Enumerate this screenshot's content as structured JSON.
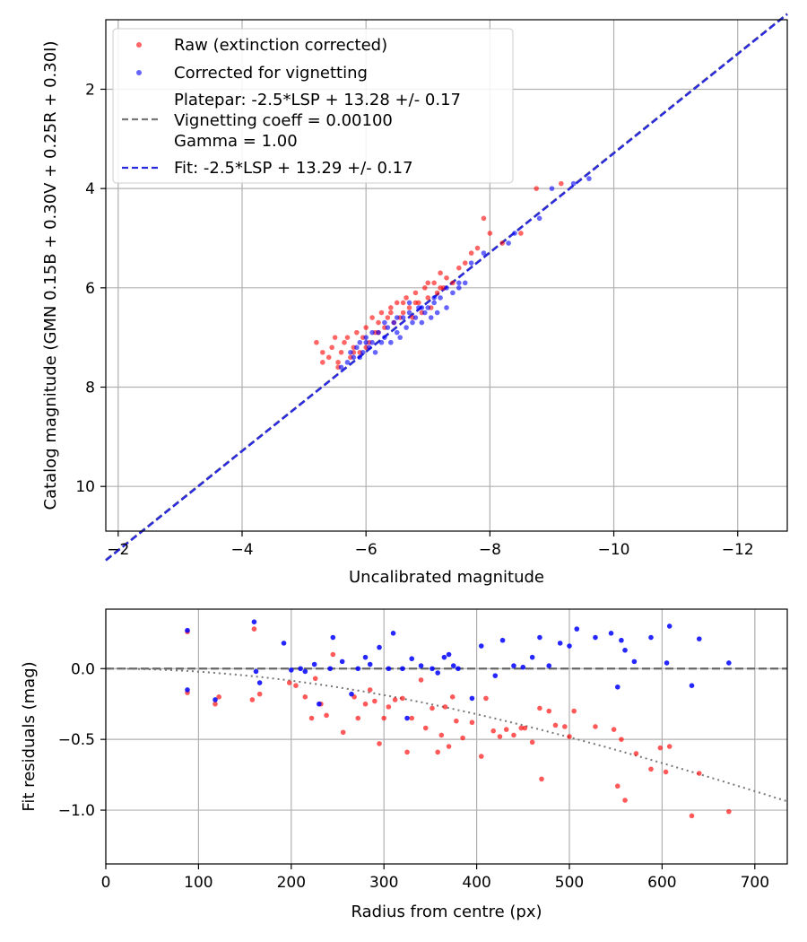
{
  "chart_data": [
    {
      "type": "scatter",
      "xlabel": "Uncalibrated magnitude",
      "ylabel": "Catalog magnitude (GMN 0.15B + 0.30V + 0.25R + 0.30I)",
      "xlim": [
        -1.8,
        -12.8
      ],
      "ylim": [
        0.6,
        10.9
      ],
      "x_inverted": true,
      "y_inverted": true,
      "xticks": [
        -2,
        -4,
        -6,
        -8,
        -10,
        -12
      ],
      "xtick_labels": [
        "−2",
        "−4",
        "−6",
        "−8",
        "−10",
        "−12"
      ],
      "yticks": [
        2,
        4,
        6,
        8,
        10
      ],
      "ytick_labels": [
        "2",
        "4",
        "6",
        "8",
        "10"
      ],
      "grid": true,
      "legend_position": "top-left",
      "legend": [
        {
          "label": "Raw (extinction corrected)",
          "kind": "marker",
          "color": "#ff0000"
        },
        {
          "label": "Corrected for vignetting",
          "kind": "marker",
          "color": "#0000ff"
        },
        {
          "label": "Platepar: -2.5*LSP + 13.28 +/- 0.17",
          "kind": "line",
          "color": "#777777"
        },
        {
          "label": "Vignetting coeff = 0.00100",
          "kind": "text",
          "color": "#777777"
        },
        {
          "label": "Gamma = 1.00",
          "kind": "text",
          "color": "#777777"
        },
        {
          "label": "Fit: -2.5*LSP + 13.29 +/- 0.17",
          "kind": "line",
          "color": "#2929e0"
        }
      ],
      "series": [
        {
          "name": "Raw (extinction corrected)",
          "color": "#ff0000",
          "x": [
            -5.2,
            -5.3,
            -5.4,
            -5.45,
            -5.5,
            -5.55,
            -5.6,
            -5.65,
            -5.7,
            -5.75,
            -5.8,
            -5.85,
            -5.9,
            -5.95,
            -6.0,
            -6.05,
            -6.1,
            -6.15,
            -6.2,
            -6.25,
            -6.3,
            -6.35,
            -6.4,
            -6.45,
            -6.5,
            -6.55,
            -6.6,
            -6.65,
            -6.7,
            -6.75,
            -6.8,
            -6.85,
            -6.9,
            -6.95,
            -7.0,
            -7.05,
            -7.1,
            -7.15,
            -7.2,
            -7.25,
            -7.3,
            -7.4,
            -7.5,
            -7.6,
            -7.7,
            -7.8,
            -7.9,
            -8.0,
            -8.2,
            -8.5,
            -8.75,
            -9.15,
            -5.3,
            -5.55,
            -5.8,
            -6.0,
            -6.2,
            -6.4,
            -6.6,
            -6.8,
            -7.0,
            -7.2
          ],
          "y": [
            7.1,
            7.3,
            7.4,
            7.2,
            7.0,
            7.5,
            7.3,
            7.1,
            7.0,
            7.4,
            7.2,
            6.9,
            7.3,
            7.0,
            6.8,
            7.1,
            6.6,
            6.9,
            6.7,
            6.5,
            6.8,
            6.6,
            6.4,
            6.7,
            6.3,
            6.6,
            6.5,
            6.2,
            6.4,
            6.6,
            6.1,
            6.3,
            6.5,
            6.0,
            6.2,
            6.4,
            5.9,
            6.1,
            5.7,
            6.0,
            5.8,
            5.9,
            5.6,
            5.5,
            5.3,
            5.2,
            4.6,
            4.9,
            5.1,
            4.9,
            4.0,
            3.9,
            7.5,
            7.6,
            7.3,
            7.2,
            6.9,
            6.5,
            6.3,
            6.3,
            5.9,
            6.0
          ]
        },
        {
          "name": "Corrected for vignetting",
          "color": "#0000ff",
          "x": [
            -5.6,
            -5.7,
            -5.75,
            -5.8,
            -5.85,
            -5.9,
            -5.95,
            -6.0,
            -6.05,
            -6.1,
            -6.15,
            -6.2,
            -6.25,
            -6.3,
            -6.35,
            -6.4,
            -6.45,
            -6.5,
            -6.55,
            -6.6,
            -6.65,
            -6.7,
            -6.75,
            -6.8,
            -6.85,
            -6.9,
            -6.95,
            -7.0,
            -7.05,
            -7.1,
            -7.15,
            -7.2,
            -7.3,
            -7.4,
            -7.5,
            -7.6,
            -7.7,
            -7.9,
            -8.3,
            -8.4,
            -8.8,
            -9.0,
            -9.35,
            -9.6,
            -5.9,
            -6.0,
            -6.1,
            -6.3,
            -6.5,
            -6.7,
            -6.9,
            -7.1,
            -7.3,
            -7.5
          ],
          "y": [
            7.6,
            7.5,
            7.3,
            7.4,
            7.2,
            7.1,
            7.3,
            7.0,
            7.2,
            7.1,
            7.3,
            6.9,
            7.1,
            7.0,
            6.8,
            7.1,
            6.7,
            6.9,
            7.0,
            6.6,
            6.8,
            6.5,
            6.7,
            6.6,
            6.4,
            6.7,
            6.5,
            6.4,
            6.6,
            6.3,
            6.5,
            6.2,
            6.4,
            6.1,
            6.0,
            5.9,
            5.5,
            5.3,
            5.1,
            4.9,
            4.6,
            4.0,
            3.9,
            3.8,
            7.4,
            7.1,
            6.9,
            6.7,
            6.6,
            6.3,
            6.4,
            6.2,
            6.0,
            5.9
          ]
        }
      ],
      "lines": [
        {
          "name": "Platepar",
          "slope": -2.5,
          "intercept": 13.28,
          "color": "#777777",
          "style": "dashed"
        },
        {
          "name": "Fit",
          "slope": -2.5,
          "intercept": 13.29,
          "color": "#2929e0",
          "style": "dashed"
        }
      ]
    },
    {
      "type": "scatter",
      "xlabel": "Radius from centre (px)",
      "ylabel": "Fit residuals (mag)",
      "xlim": [
        0,
        735
      ],
      "ylim": [
        -1.38,
        0.42
      ],
      "xticks": [
        0,
        100,
        200,
        300,
        400,
        500,
        600,
        700
      ],
      "xtick_labels": [
        "0",
        "100",
        "200",
        "300",
        "400",
        "500",
        "600",
        "700"
      ],
      "yticks": [
        0.0,
        -0.5,
        -1.0
      ],
      "ytick_labels": [
        "0.0",
        "−0.5",
        "−1.0"
      ],
      "grid": true,
      "series": [
        {
          "name": "Raw residuals",
          "color": "#ff0000",
          "x": [
            88,
            88,
            118,
            122,
            158,
            160,
            166,
            198,
            205,
            215,
            222,
            226,
            232,
            238,
            245,
            256,
            268,
            272,
            280,
            285,
            290,
            295,
            300,
            305,
            312,
            320,
            325,
            330,
            340,
            345,
            352,
            358,
            362,
            366,
            370,
            374,
            378,
            385,
            395,
            405,
            410,
            418,
            425,
            432,
            440,
            448,
            452,
            460,
            468,
            470,
            478,
            485,
            495,
            500,
            505,
            528,
            548,
            552,
            556,
            560,
            572,
            588,
            598,
            604,
            608,
            632,
            640,
            672
          ],
          "y": [
            0.26,
            -0.17,
            -0.25,
            -0.2,
            -0.22,
            0.28,
            -0.18,
            -0.1,
            -0.12,
            -0.2,
            -0.35,
            -0.07,
            -0.25,
            -0.33,
            0.1,
            -0.45,
            -0.2,
            -0.35,
            -0.25,
            -0.15,
            -0.23,
            -0.53,
            -0.35,
            -0.27,
            -0.22,
            -0.21,
            -0.59,
            -0.35,
            -0.08,
            -0.42,
            -0.28,
            -0.59,
            -0.47,
            -0.27,
            -0.55,
            -0.2,
            -0.37,
            -0.49,
            -0.38,
            -0.62,
            -0.21,
            -0.44,
            -0.48,
            -0.43,
            -0.47,
            -0.42,
            -0.42,
            -0.52,
            -0.28,
            -0.78,
            -0.3,
            -0.4,
            -0.41,
            -0.48,
            -0.3,
            -0.41,
            -0.43,
            -0.83,
            -0.5,
            -0.93,
            -0.6,
            -0.71,
            -0.56,
            -0.73,
            -0.55,
            -1.04,
            -0.74,
            -1.01
          ]
        },
        {
          "name": "Corrected residuals",
          "color": "#0000ff",
          "x": [
            88,
            88,
            118,
            160,
            162,
            166,
            192,
            200,
            210,
            215,
            225,
            230,
            242,
            245,
            255,
            265,
            272,
            280,
            285,
            295,
            305,
            310,
            320,
            325,
            330,
            340,
            352,
            358,
            365,
            370,
            375,
            380,
            395,
            405,
            420,
            428,
            440,
            450,
            460,
            468,
            478,
            490,
            500,
            508,
            528,
            545,
            552,
            556,
            560,
            570,
            588,
            605,
            608,
            632,
            640,
            672
          ],
          "y": [
            0.27,
            -0.15,
            -0.22,
            0.33,
            -0.02,
            -0.1,
            0.18,
            -0.01,
            0.0,
            -0.02,
            0.03,
            -0.25,
            0.0,
            0.22,
            0.05,
            -0.18,
            0.0,
            0.08,
            0.03,
            0.15,
            0.0,
            0.25,
            0.0,
            -0.35,
            0.07,
            0.02,
            0.0,
            -0.03,
            0.08,
            0.1,
            0.02,
            0.0,
            -0.21,
            0.16,
            -0.05,
            0.2,
            0.02,
            0.01,
            0.08,
            0.22,
            0.02,
            0.18,
            0.16,
            0.28,
            0.22,
            0.25,
            -0.13,
            0.2,
            0.13,
            0.05,
            0.22,
            0.04,
            0.3,
            -0.12,
            0.21,
            0.04
          ]
        }
      ],
      "lines": [
        {
          "name": "Zero line",
          "color": "#777777",
          "style": "dashed"
        },
        {
          "name": "Vignetting model",
          "color": "#777777",
          "style": "dotted",
          "coeff": 0.001
        }
      ]
    }
  ]
}
